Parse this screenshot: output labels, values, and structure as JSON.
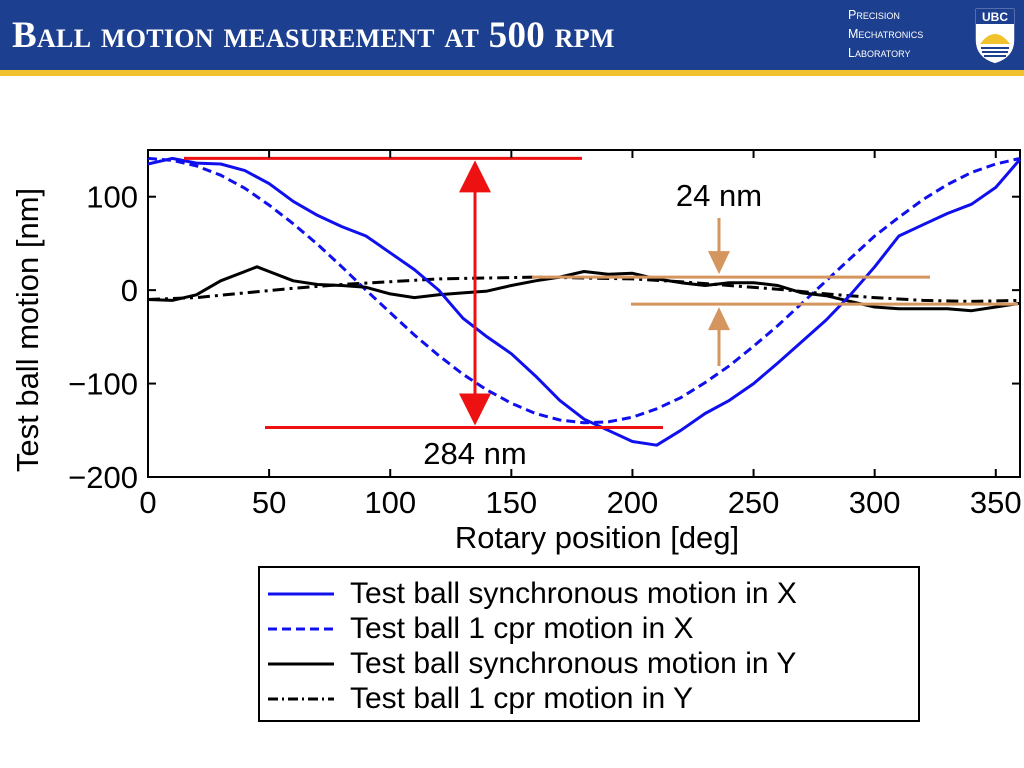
{
  "header": {
    "title": "Ball motion measurement at 500 rpm",
    "lab_lines": [
      "Precision",
      "Mechatronics",
      "Laboratory"
    ],
    "logo_text": "UBC",
    "colors": {
      "bar": "#1d3f8f",
      "accent": "#f2c12e"
    }
  },
  "chart_data": {
    "type": "line",
    "title": "",
    "xlabel": "Rotary position [deg]",
    "ylabel": "Test ball motion [nm]",
    "xlim": [
      0,
      360
    ],
    "ylim": [
      -200,
      150
    ],
    "xticks": [
      0,
      50,
      100,
      150,
      200,
      250,
      300,
      350
    ],
    "yticks": [
      100,
      0,
      -100,
      -200
    ],
    "ytick_labels": [
      "100",
      "0",
      "−100",
      "−200"
    ],
    "grid": false,
    "legend_position": "below",
    "series": [
      {
        "name": "Test ball synchronous motion in X",
        "color": "#1010ee",
        "dash": "solid",
        "x": [
          0,
          10,
          20,
          30,
          40,
          50,
          60,
          70,
          80,
          90,
          100,
          110,
          120,
          130,
          140,
          150,
          160,
          170,
          180,
          190,
          200,
          210,
          220,
          230,
          240,
          250,
          260,
          270,
          280,
          290,
          300,
          310,
          320,
          330,
          340,
          350,
          360
        ],
        "y": [
          135,
          141,
          136,
          135,
          128,
          114,
          95,
          80,
          68,
          58,
          40,
          22,
          0,
          -30,
          -50,
          -68,
          -92,
          -118,
          -138,
          -150,
          -162,
          -166,
          -150,
          -132,
          -118,
          -100,
          -78,
          -55,
          -32,
          -5,
          25,
          58,
          70,
          82,
          92,
          110,
          140
        ]
      },
      {
        "name": "Test ball 1 cpr motion in X",
        "color": "#1010ee",
        "dash": "dashed",
        "x": [
          0,
          10,
          20,
          30,
          40,
          50,
          60,
          70,
          80,
          90,
          100,
          110,
          120,
          130,
          140,
          150,
          160,
          170,
          180,
          190,
          200,
          210,
          220,
          230,
          240,
          250,
          260,
          270,
          280,
          290,
          300,
          310,
          320,
          330,
          340,
          350,
          360
        ],
        "y": [
          141,
          139,
          133,
          123,
          109,
          91,
          71,
          49,
          25,
          0,
          -24,
          -48,
          -70,
          -90,
          -107,
          -121,
          -132,
          -139,
          -142,
          -141,
          -136,
          -127,
          -115,
          -99,
          -81,
          -60,
          -38,
          -14,
          10,
          34,
          58,
          78,
          97,
          113,
          126,
          135,
          141
        ]
      },
      {
        "name": "Test ball synchronous motion in Y",
        "color": "#000000",
        "dash": "solid",
        "x": [
          0,
          10,
          20,
          30,
          40,
          45,
          50,
          60,
          70,
          80,
          90,
          100,
          110,
          120,
          130,
          140,
          150,
          160,
          170,
          180,
          190,
          200,
          210,
          220,
          230,
          240,
          250,
          260,
          270,
          280,
          290,
          300,
          310,
          320,
          330,
          340,
          350,
          360
        ],
        "y": [
          -10,
          -11,
          -5,
          10,
          20,
          25,
          20,
          10,
          6,
          5,
          3,
          -4,
          -8,
          -5,
          -3,
          -1,
          5,
          10,
          14,
          20,
          17,
          18,
          12,
          8,
          5,
          8,
          8,
          5,
          -3,
          -6,
          -12,
          -18,
          -20,
          -20,
          -20,
          -22,
          -18,
          -14
        ]
      },
      {
        "name": "Test ball 1 cpr motion in Y",
        "color": "#000000",
        "dash": "dashdot",
        "x": [
          0,
          20,
          40,
          60,
          80,
          100,
          120,
          140,
          160,
          180,
          200,
          220,
          240,
          260,
          280,
          300,
          320,
          340,
          360
        ],
        "y": [
          -10,
          -8,
          -3,
          2,
          6,
          9,
          12,
          13,
          14,
          13,
          12,
          9,
          5,
          1,
          -4,
          -8,
          -11,
          -12,
          -11
        ]
      }
    ],
    "annotations": [
      {
        "text": "284 nm",
        "color": "#ee1111",
        "x_range": [
          15,
          180
        ],
        "y_top": 141,
        "y_bottom": -147
      },
      {
        "text": "24 nm",
        "color": "#d4955e",
        "y_top": 14,
        "y_bottom": -15
      }
    ]
  }
}
